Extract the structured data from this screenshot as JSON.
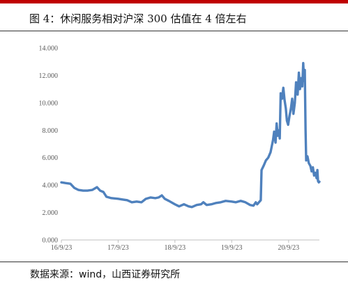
{
  "header": {
    "title": "图 4：休闲服务相对沪深 300 估值在 4 倍左右",
    "accent_color": "#c00000"
  },
  "footer": {
    "source": "数据来源：wind，山西证券研究所"
  },
  "chart_data": {
    "type": "line",
    "title": "",
    "xlabel": "",
    "ylabel": "",
    "ylim": [
      0,
      14
    ],
    "yticks": [
      "0.000",
      "2.000",
      "4.000",
      "6.000",
      "8.000",
      "10.000",
      "12.000",
      "14.000"
    ],
    "xticks": [
      "16/9/23",
      "17/9/23",
      "18/9/23",
      "19/9/23",
      "20/9/23"
    ],
    "xlim": [
      "2016-09-23",
      "2021-04-09"
    ],
    "grid": false,
    "legend": "none",
    "series": [
      {
        "color": "#4f81bd",
        "points": [
          [
            "2016-09-23",
            4.2
          ],
          [
            "2016-10-20",
            4.15
          ],
          [
            "2016-11-20",
            4.1
          ],
          [
            "2016-12-15",
            3.8
          ],
          [
            "2017-01-10",
            3.65
          ],
          [
            "2017-02-10",
            3.6
          ],
          [
            "2017-03-10",
            3.6
          ],
          [
            "2017-04-10",
            3.65
          ],
          [
            "2017-05-10",
            3.85
          ],
          [
            "2017-05-30",
            3.6
          ],
          [
            "2017-06-20",
            3.5
          ],
          [
            "2017-07-10",
            3.15
          ],
          [
            "2017-08-10",
            3.05
          ],
          [
            "2017-09-23",
            3.0
          ],
          [
            "2017-10-20",
            2.95
          ],
          [
            "2017-11-20",
            2.9
          ],
          [
            "2017-12-20",
            2.75
          ],
          [
            "2018-01-20",
            2.8
          ],
          [
            "2018-02-20",
            2.75
          ],
          [
            "2018-03-20",
            3.0
          ],
          [
            "2018-04-20",
            3.1
          ],
          [
            "2018-05-20",
            3.05
          ],
          [
            "2018-06-10",
            3.1
          ],
          [
            "2018-07-01",
            3.25
          ],
          [
            "2018-07-20",
            3.0
          ],
          [
            "2018-08-15",
            2.85
          ],
          [
            "2018-09-23",
            2.6
          ],
          [
            "2018-10-20",
            2.45
          ],
          [
            "2018-11-20",
            2.6
          ],
          [
            "2018-12-20",
            2.45
          ],
          [
            "2019-01-10",
            2.4
          ],
          [
            "2019-02-10",
            2.55
          ],
          [
            "2019-03-10",
            2.6
          ],
          [
            "2019-03-25",
            2.75
          ],
          [
            "2019-04-15",
            2.55
          ],
          [
            "2019-05-15",
            2.6
          ],
          [
            "2019-06-15",
            2.7
          ],
          [
            "2019-07-15",
            2.75
          ],
          [
            "2019-08-15",
            2.85
          ],
          [
            "2019-09-23",
            2.8
          ],
          [
            "2019-10-20",
            2.75
          ],
          [
            "2019-11-20",
            2.85
          ],
          [
            "2019-12-20",
            2.75
          ],
          [
            "2020-01-20",
            2.55
          ],
          [
            "2020-02-10",
            2.5
          ],
          [
            "2020-02-25",
            2.75
          ],
          [
            "2020-03-05",
            2.6
          ],
          [
            "2020-03-20",
            2.8
          ],
          [
            "2020-03-28",
            2.9
          ],
          [
            "2020-04-02",
            5.1
          ],
          [
            "2020-04-15",
            5.4
          ],
          [
            "2020-04-30",
            5.8
          ],
          [
            "2020-05-15",
            6.0
          ],
          [
            "2020-05-30",
            6.4
          ],
          [
            "2020-06-15",
            7.3
          ],
          [
            "2020-06-22",
            7.9
          ],
          [
            "2020-07-01",
            7.1
          ],
          [
            "2020-07-08",
            8.5
          ],
          [
            "2020-07-15",
            7.6
          ],
          [
            "2020-07-22",
            8.0
          ],
          [
            "2020-07-28",
            7.4
          ],
          [
            "2020-08-03",
            10.7
          ],
          [
            "2020-08-12",
            10.3
          ],
          [
            "2020-08-20",
            11.1
          ],
          [
            "2020-08-28",
            10.2
          ],
          [
            "2020-09-05",
            9.6
          ],
          [
            "2020-09-12",
            8.7
          ],
          [
            "2020-09-20",
            8.4
          ],
          [
            "2020-09-28",
            9.0
          ],
          [
            "2020-10-08",
            9.6
          ],
          [
            "2020-10-16",
            10.3
          ],
          [
            "2020-10-24",
            9.2
          ],
          [
            "2020-11-02",
            10.0
          ],
          [
            "2020-11-10",
            11.5
          ],
          [
            "2020-11-20",
            10.6
          ],
          [
            "2020-11-28",
            12.2
          ],
          [
            "2020-12-05",
            11.0
          ],
          [
            "2020-12-12",
            11.8
          ],
          [
            "2020-12-20",
            11.2
          ],
          [
            "2020-12-26",
            12.9
          ],
          [
            "2020-12-31",
            11.6
          ],
          [
            "2021-01-05",
            12.4
          ],
          [
            "2021-01-10",
            8.0
          ],
          [
            "2021-01-14",
            5.8
          ],
          [
            "2021-01-22",
            6.1
          ],
          [
            "2021-01-31",
            5.6
          ],
          [
            "2021-02-10",
            5.4
          ],
          [
            "2021-02-18",
            5.0
          ],
          [
            "2021-02-26",
            5.3
          ],
          [
            "2021-03-06",
            4.7
          ],
          [
            "2021-03-14",
            4.9
          ],
          [
            "2021-03-22",
            4.5
          ],
          [
            "2021-03-27",
            5.1
          ],
          [
            "2021-03-31",
            4.3
          ],
          [
            "2021-04-05",
            4.2
          ],
          [
            "2021-04-09",
            4.25
          ]
        ]
      }
    ]
  }
}
